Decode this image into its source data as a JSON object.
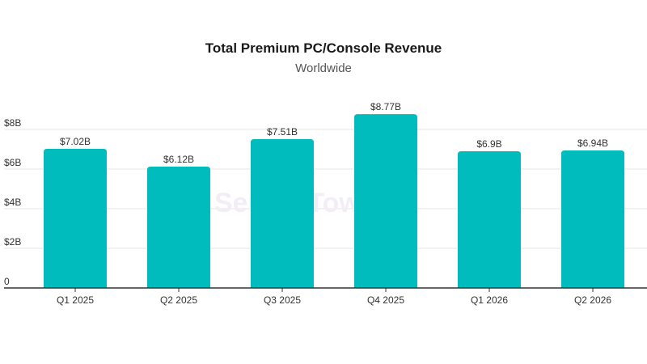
{
  "chart_data": {
    "type": "bar",
    "title": "Total Premium PC/Console Revenue",
    "subtitle": "Worldwide",
    "categories": [
      "Q1 2025",
      "Q2 2025",
      "Q3 2025",
      "Q4 2025",
      "Q1 2026",
      "Q2 2026"
    ],
    "values": [
      7.02,
      6.12,
      7.51,
      8.77,
      6.9,
      6.94
    ],
    "data_labels": [
      "$7.02B",
      "$6.12B",
      "$7.51B",
      "$8.77B",
      "$6.9B",
      "$6.94B"
    ],
    "yticks": [
      0,
      2,
      4,
      6,
      8
    ],
    "ytick_labels": [
      "0",
      "$2B",
      "$4B",
      "$6B",
      "$8B"
    ],
    "ylim": [
      0,
      8
    ],
    "bar_color": "#00bcbc",
    "grid": true,
    "watermark": "SensorTower"
  }
}
